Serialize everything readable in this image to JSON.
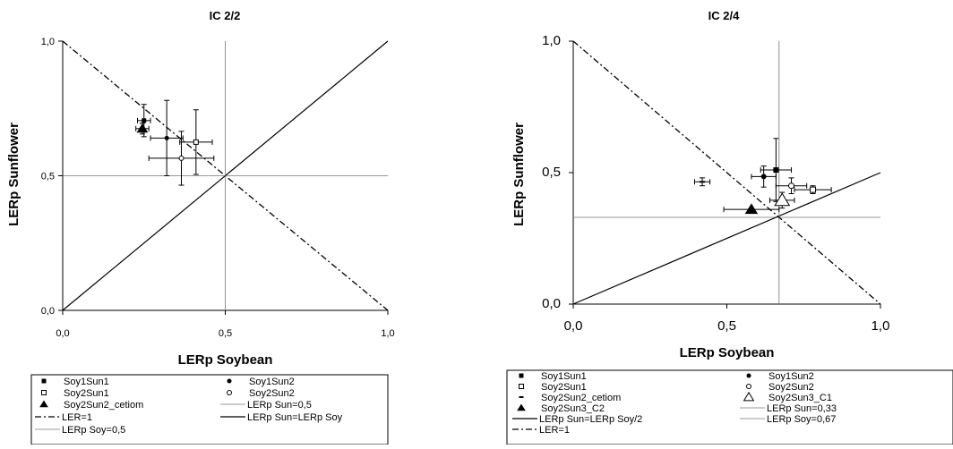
{
  "chart_data": [
    {
      "type": "scatter",
      "title": "IC 2/2",
      "xlabel": "LERp Soybean",
      "ylabel": "LERp Sunflower",
      "xlim": [
        0,
        1
      ],
      "ylim": [
        0,
        1
      ],
      "xticks": [
        "0,0",
        "0,5",
        "1,0"
      ],
      "yticks": [
        "0,0",
        "0,5",
        "1,0"
      ],
      "grid": false,
      "legend_position": "below",
      "series": [
        {
          "name": "Soy1Sun1",
          "marker": "filled-square",
          "x": 0.25,
          "y": 0.705,
          "xerr": 0.02,
          "yerr": 0.06
        },
        {
          "name": "Soy1Sun2",
          "marker": "filled-circle",
          "x": 0.32,
          "y": 0.64,
          "xerr": 0.05,
          "yerr": 0.14
        },
        {
          "name": "Soy2Sun1",
          "marker": "open-square",
          "x": 0.41,
          "y": 0.625,
          "xerr": 0.05,
          "yerr": 0.12
        },
        {
          "name": "Soy2Sun2",
          "marker": "open-circle",
          "x": 0.365,
          "y": 0.565,
          "xerr": 0.1,
          "yerr": 0.1
        },
        {
          "name": "Soy2Sun2_cetiom",
          "marker": "filled-triangle",
          "x": 0.245,
          "y": 0.675,
          "xerr": 0.02,
          "yerr": 0.02
        }
      ],
      "reference_lines": [
        {
          "name": "LER=1",
          "style": "dash-dot"
        },
        {
          "name": "LERp Sun=0,5",
          "style": "thin-gray"
        },
        {
          "name": "LERp Sun=LERp Soy",
          "style": "solid"
        },
        {
          "name": "LERp Soy=0,5",
          "style": "thin-gray"
        }
      ]
    },
    {
      "type": "scatter",
      "title": "IC 2/4",
      "xlabel": "LERp Soybean",
      "ylabel": "LERp Sunflower",
      "xlim": [
        0,
        1
      ],
      "ylim": [
        0,
        1
      ],
      "xticks": [
        "0,0",
        "0,5",
        "1,0"
      ],
      "yticks": [
        "0,0",
        "0,5",
        "1,0"
      ],
      "grid": false,
      "legend_position": "below",
      "series": [
        {
          "name": "Soy1Sun1",
          "marker": "filled-square",
          "x": 0.66,
          "y": 0.51,
          "xerr": 0.05,
          "yerr": 0.12
        },
        {
          "name": "Soy1Sun2",
          "marker": "filled-circle",
          "x": 0.62,
          "y": 0.485,
          "xerr": 0.04,
          "yerr": 0.04
        },
        {
          "name": "Soy2Sun1",
          "marker": "open-square",
          "x": 0.78,
          "y": 0.435,
          "xerr": 0.06,
          "yerr": 0.015
        },
        {
          "name": "Soy2Sun2",
          "marker": "open-circle",
          "x": 0.71,
          "y": 0.45,
          "xerr": 0.05,
          "yerr": 0.03
        },
        {
          "name": "Soy2Sun2_cetiom",
          "marker": "dash",
          "x": 0.42,
          "y": 0.465,
          "xerr": 0.025,
          "yerr": 0.015
        },
        {
          "name": "Soy2Sun3_C1",
          "marker": "open-triangle",
          "x": 0.68,
          "y": 0.395,
          "xerr": 0.04,
          "yerr": 0.03
        },
        {
          "name": "Soy2Sun3_C2",
          "marker": "filled-triangle",
          "x": 0.58,
          "y": 0.36,
          "xerr": 0.09,
          "yerr": 0.0
        }
      ],
      "reference_lines": [
        {
          "name": "LERp Sun=0,33",
          "style": "thin-gray"
        },
        {
          "name": "LERp Sun=LERp Soy/2",
          "style": "solid"
        },
        {
          "name": "LERp Soy=0,67",
          "style": "thin-gray"
        },
        {
          "name": "LER=1",
          "style": "dash-dot"
        }
      ]
    }
  ]
}
